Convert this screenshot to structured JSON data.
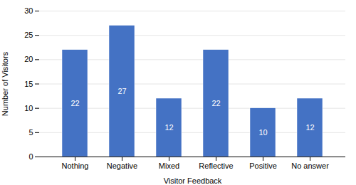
{
  "chart_data": {
    "type": "bar",
    "categories": [
      "Nothing",
      "Negative",
      "Mixed",
      "Reflective",
      "Positive",
      "No answer"
    ],
    "values": [
      22,
      27,
      12,
      22,
      10,
      12
    ],
    "color": "#4472c4",
    "xlabel": "Visitor Feedback",
    "ylabel": "Number of Visitors",
    "ylim": [
      0,
      30
    ],
    "yticks": [
      0,
      5,
      10,
      15,
      20,
      25,
      30
    ],
    "grid": true,
    "data_labels": true
  }
}
